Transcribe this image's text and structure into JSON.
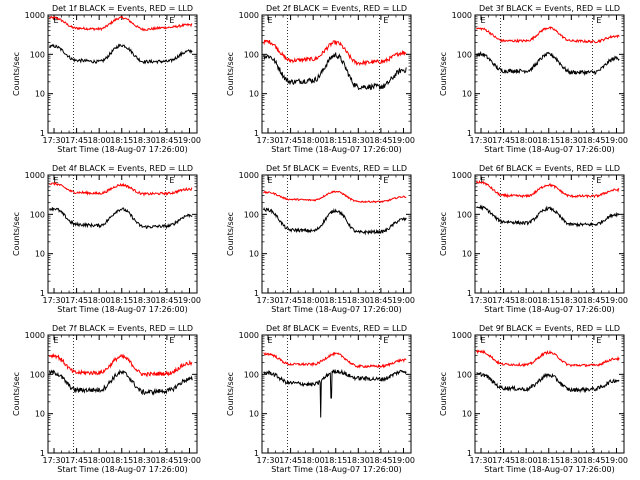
{
  "chart_data": [
    {
      "type": "line",
      "title": "Det 1f BLACK = Events, RED = LLD",
      "ylabel": "Counts/sec",
      "xlabel": "Start Time (18-Aug-07 17:26:00)",
      "x_ticks": [
        "17:30",
        "17:45",
        "18:00",
        "18:15",
        "18:30",
        "18:45",
        "19:00"
      ],
      "y_ticks": [
        "1",
        "10",
        "100",
        "1000"
      ],
      "y_scale": "log",
      "ylim": [
        1,
        1000
      ],
      "vlines": [
        "17:43",
        "18:44"
      ],
      "markers": [
        {
          "label": "E",
          "x": "17:29"
        },
        {
          "label": "E",
          "x": "18:46"
        }
      ],
      "series": [
        {
          "color": "#ff0000",
          "x": [
            "17:30",
            "17:45",
            "18:00",
            "18:15",
            "18:30",
            "18:45",
            "19:00"
          ],
          "values": [
            850,
            460,
            440,
            850,
            430,
            480,
            560
          ],
          "noise": 0.03
        },
        {
          "color": "#000000",
          "x": [
            "17:30",
            "17:45",
            "18:00",
            "18:15",
            "18:30",
            "18:45",
            "19:00"
          ],
          "values": [
            160,
            70,
            65,
            170,
            65,
            66,
            120
          ],
          "noise": 0.04
        }
      ]
    },
    {
      "type": "line",
      "title": "Det 2f BLACK = Events, RED = LLD",
      "ylabel": "Counts/sec",
      "xlabel": "Start Time (18-Aug-07 17:26:00)",
      "x_ticks": [
        "17:30",
        "17:45",
        "18:00",
        "18:15",
        "18:30",
        "18:45",
        "19:00"
      ],
      "y_ticks": [
        "1",
        "10",
        "100",
        "1000"
      ],
      "y_scale": "log",
      "ylim": [
        1,
        1000
      ],
      "vlines": [
        "17:43",
        "18:44"
      ],
      "markers": [
        {
          "label": "E",
          "x": "17:29"
        },
        {
          "label": "E",
          "x": "18:46"
        }
      ],
      "series": [
        {
          "color": "#ff0000",
          "x": [
            "17:30",
            "17:45",
            "18:00",
            "18:15",
            "18:30",
            "18:45",
            "19:00"
          ],
          "values": [
            210,
            70,
            75,
            200,
            60,
            65,
            110
          ],
          "noise": 0.05
        },
        {
          "color": "#000000",
          "x": [
            "17:30",
            "17:45",
            "18:00",
            "18:15",
            "18:30",
            "18:45",
            "19:00"
          ],
          "values": [
            90,
            20,
            22,
            95,
            15,
            15,
            40
          ],
          "noise": 0.07
        }
      ]
    },
    {
      "type": "line",
      "title": "Det 3f BLACK = Events, RED = LLD",
      "ylabel": "Counts/sec",
      "xlabel": "Start Time (18-Aug-07 17:26:00)",
      "x_ticks": [
        "17:30",
        "17:45",
        "18:00",
        "18:15",
        "18:30",
        "18:45",
        "19:00"
      ],
      "y_ticks": [
        "1",
        "10",
        "100",
        "1000"
      ],
      "y_scale": "log",
      "ylim": [
        1,
        1000
      ],
      "vlines": [
        "17:43",
        "18:44"
      ],
      "markers": [
        {
          "label": "E",
          "x": "17:29"
        },
        {
          "label": "E",
          "x": "18:46"
        }
      ],
      "series": [
        {
          "color": "#ff0000",
          "x": [
            "17:30",
            "17:45",
            "18:00",
            "18:15",
            "18:30",
            "18:45",
            "19:00"
          ],
          "values": [
            450,
            220,
            220,
            470,
            220,
            210,
            290
          ],
          "noise": 0.03
        },
        {
          "color": "#000000",
          "x": [
            "17:30",
            "17:45",
            "18:00",
            "18:15",
            "18:30",
            "18:45",
            "19:00"
          ],
          "values": [
            100,
            38,
            38,
            100,
            35,
            35,
            80
          ],
          "noise": 0.05
        }
      ]
    },
    {
      "type": "line",
      "title": "Det 4f BLACK = Events, RED = LLD",
      "ylabel": "Counts/sec",
      "xlabel": "Start Time (18-Aug-07 17:26:00)",
      "x_ticks": [
        "17:30",
        "17:45",
        "18:00",
        "18:15",
        "18:30",
        "18:45",
        "19:00"
      ],
      "y_ticks": [
        "1",
        "10",
        "100",
        "1000"
      ],
      "y_scale": "log",
      "ylim": [
        1,
        1000
      ],
      "vlines": [
        "17:43",
        "18:44"
      ],
      "markers": [
        {
          "label": "E",
          "x": "17:29"
        },
        {
          "label": "E",
          "x": "18:46"
        }
      ],
      "series": [
        {
          "color": "#ff0000",
          "x": [
            "17:30",
            "17:45",
            "18:00",
            "18:15",
            "18:30",
            "18:45",
            "19:00"
          ],
          "values": [
            600,
            360,
            340,
            560,
            330,
            340,
            440
          ],
          "noise": 0.03
        },
        {
          "color": "#000000",
          "x": [
            "17:30",
            "17:45",
            "18:00",
            "18:15",
            "18:30",
            "18:45",
            "19:00"
          ],
          "values": [
            140,
            55,
            52,
            135,
            48,
            50,
            95
          ],
          "noise": 0.04
        }
      ]
    },
    {
      "type": "line",
      "title": "Det 5f BLACK = Events, RED = LLD",
      "ylabel": "Counts/sec",
      "xlabel": "Start Time (18-Aug-07 17:26:00)",
      "x_ticks": [
        "17:30",
        "17:45",
        "18:00",
        "18:15",
        "18:30",
        "18:45",
        "19:00"
      ],
      "y_ticks": [
        "1",
        "10",
        "100",
        "1000"
      ],
      "y_scale": "log",
      "ylim": [
        1,
        1000
      ],
      "vlines": [
        "17:43",
        "18:44"
      ],
      "markers": [
        {
          "label": "E",
          "x": "17:29"
        },
        {
          "label": "E",
          "x": "18:46"
        }
      ],
      "series": [
        {
          "color": "#ff0000",
          "x": [
            "17:30",
            "17:45",
            "18:00",
            "18:15",
            "18:30",
            "18:45",
            "19:00"
          ],
          "values": [
            360,
            240,
            230,
            380,
            210,
            210,
            280
          ],
          "noise": 0.02
        },
        {
          "color": "#000000",
          "x": [
            "17:30",
            "17:45",
            "18:00",
            "18:15",
            "18:30",
            "18:45",
            "19:00"
          ],
          "values": [
            130,
            40,
            38,
            125,
            35,
            36,
            75
          ],
          "noise": 0.04
        }
      ]
    },
    {
      "type": "line",
      "title": "Det 6f BLACK = Events, RED = LLD",
      "ylabel": "Counts/sec",
      "xlabel": "Start Time (18-Aug-07 17:26:00)",
      "x_ticks": [
        "17:30",
        "17:45",
        "18:00",
        "18:15",
        "18:30",
        "18:45",
        "19:00"
      ],
      "y_ticks": [
        "1",
        "10",
        "100",
        "1000"
      ],
      "y_scale": "log",
      "ylim": [
        1,
        1000
      ],
      "vlines": [
        "17:43",
        "18:44"
      ],
      "markers": [
        {
          "label": "E",
          "x": "17:29"
        },
        {
          "label": "E",
          "x": "18:46"
        }
      ],
      "series": [
        {
          "color": "#ff0000",
          "x": [
            "17:30",
            "17:45",
            "18:00",
            "18:15",
            "18:30",
            "18:45",
            "19:00"
          ],
          "values": [
            650,
            300,
            290,
            560,
            290,
            290,
            420
          ],
          "noise": 0.03
        },
        {
          "color": "#000000",
          "x": [
            "17:30",
            "17:45",
            "18:00",
            "18:15",
            "18:30",
            "18:45",
            "19:00"
          ],
          "values": [
            150,
            65,
            60,
            140,
            55,
            55,
            100
          ],
          "noise": 0.04
        }
      ]
    },
    {
      "type": "line",
      "title": "Det 7f BLACK = Events, RED = LLD",
      "ylabel": "Counts/sec",
      "xlabel": "Start Time (18-Aug-07 17:26:00)",
      "x_ticks": [
        "17:30",
        "17:45",
        "18:00",
        "18:15",
        "18:30",
        "18:45",
        "19:00"
      ],
      "y_ticks": [
        "1",
        "10",
        "100",
        "1000"
      ],
      "y_scale": "log",
      "ylim": [
        1,
        1000
      ],
      "vlines": [
        "17:43",
        "18:44"
      ],
      "markers": [
        {
          "label": "E",
          "x": "17:29"
        },
        {
          "label": "E",
          "x": "18:46"
        }
      ],
      "series": [
        {
          "color": "#ff0000",
          "x": [
            "17:30",
            "17:45",
            "18:00",
            "18:15",
            "18:30",
            "18:45",
            "19:00"
          ],
          "values": [
            300,
            110,
            110,
            280,
            100,
            105,
            190
          ],
          "noise": 0.05
        },
        {
          "color": "#000000",
          "x": [
            "17:30",
            "17:45",
            "18:00",
            "18:15",
            "18:30",
            "18:45",
            "19:00"
          ],
          "values": [
            110,
            40,
            40,
            110,
            35,
            38,
            75
          ],
          "noise": 0.06
        }
      ]
    },
    {
      "type": "line",
      "title": "Det 8f BLACK = Events, RED = LLD",
      "ylabel": "Counts/sec",
      "xlabel": "Start Time (18-Aug-07 17:26:00)",
      "x_ticks": [
        "17:30",
        "17:45",
        "18:00",
        "18:15",
        "18:30",
        "18:45",
        "19:00"
      ],
      "y_ticks": [
        "1",
        "10",
        "100",
        "1000"
      ],
      "y_scale": "log",
      "ylim": [
        1,
        1000
      ],
      "vlines": [
        "17:43",
        "18:44"
      ],
      "markers": [
        {
          "label": "E",
          "x": "17:29"
        },
        {
          "label": "E",
          "x": "18:46"
        }
      ],
      "series": [
        {
          "color": "#ff0000",
          "x": [
            "17:30",
            "17:45",
            "18:00",
            "18:15",
            "18:30",
            "18:45",
            "19:00"
          ],
          "values": [
            330,
            180,
            180,
            330,
            160,
            160,
            230
          ],
          "noise": 0.03
        },
        {
          "color": "#000000",
          "x": [
            "17:30",
            "17:45",
            "18:00",
            "18:15",
            "18:30",
            "18:45",
            "19:00"
          ],
          "values": [
            110,
            60,
            55,
            120,
            80,
            75,
            120
          ],
          "noise": 0.05,
          "dips": [
            {
              "x": "18:05",
              "value": 8
            },
            {
              "x": "18:12",
              "value": 25
            }
          ]
        }
      ]
    },
    {
      "type": "line",
      "title": "Det 9f BLACK = Events, RED = LLD",
      "ylabel": "Counts/sec",
      "xlabel": "Start Time (18-Aug-07 17:26:00)",
      "x_ticks": [
        "17:30",
        "17:45",
        "18:00",
        "18:15",
        "18:30",
        "18:45",
        "19:00"
      ],
      "y_ticks": [
        "1",
        "10",
        "100",
        "1000"
      ],
      "y_scale": "log",
      "ylim": [
        1,
        1000
      ],
      "vlines": [
        "17:43",
        "18:44"
      ],
      "markers": [
        {
          "label": "E",
          "x": "17:29"
        },
        {
          "label": "E",
          "x": "18:46"
        }
      ],
      "series": [
        {
          "color": "#ff0000",
          "x": [
            "17:30",
            "17:45",
            "18:00",
            "18:15",
            "18:30",
            "18:45",
            "19:00"
          ],
          "values": [
            380,
            180,
            175,
            360,
            170,
            170,
            250
          ],
          "noise": 0.03
        },
        {
          "color": "#000000",
          "x": [
            "17:30",
            "17:45",
            "18:00",
            "18:15",
            "18:30",
            "18:45",
            "19:00"
          ],
          "values": [
            100,
            45,
            42,
            95,
            40,
            42,
            70
          ],
          "noise": 0.05
        }
      ]
    }
  ]
}
